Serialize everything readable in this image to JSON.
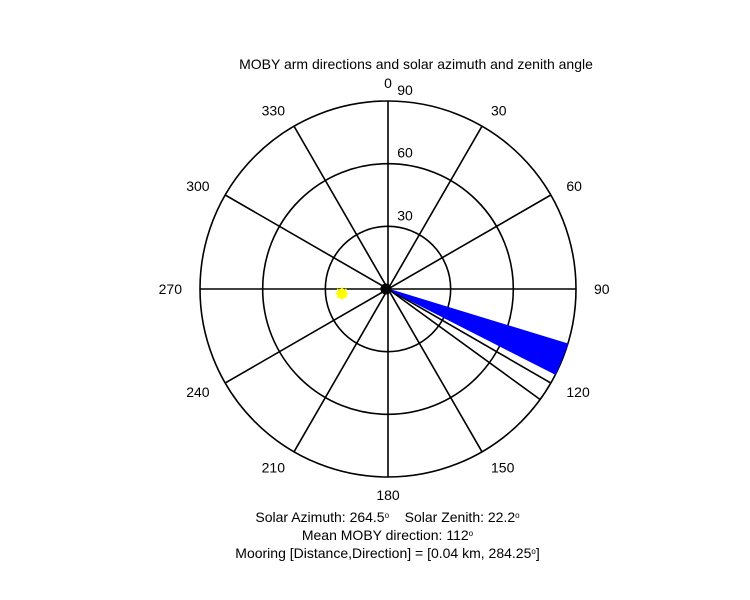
{
  "chart_data": {
    "type": "polar",
    "title": "MOBY arm directions and solar azimuth and zenith angle",
    "zenith_rings": [
      30,
      60,
      90
    ],
    "radial_tick_labels": [
      "30",
      "60",
      "90"
    ],
    "azimuth_tick_labels": [
      "0",
      "30",
      "60",
      "90",
      "120",
      "150",
      "180",
      "210",
      "240",
      "270",
      "300",
      "330"
    ],
    "azimuth_ticks": [
      0,
      30,
      60,
      90,
      120,
      150,
      180,
      210,
      240,
      270,
      300,
      330
    ],
    "arm_sector": {
      "from_deg": 107,
      "to_deg": 117,
      "radius": 90
    },
    "arm_line": {
      "direction_deg": 126,
      "radius": 90
    },
    "center_marker": {
      "direction_deg": 270,
      "radius": 1
    },
    "sun": {
      "azimuth_deg": 264.5,
      "zenith_deg": 22.2
    },
    "colors": {
      "arm_sector": "#0000ff",
      "sun": "#ffff00",
      "center_marker": "#000000",
      "grid": "#000000"
    }
  },
  "footer": {
    "solar_azimuth_label": "Solar Azimuth:",
    "solar_azimuth_value": "264.5",
    "solar_zenith_label": "Solar Zenith:",
    "solar_zenith_value": "22.2",
    "mean_direction_label": "Mean MOBY direction:",
    "mean_direction_value": "112",
    "degree_symbol": "o",
    "mooring_text": "Mooring [Distance,Direction] = [0.04 km, 284.25",
    "mooring_degree_symbol": "o",
    "mooring_close": "]"
  }
}
